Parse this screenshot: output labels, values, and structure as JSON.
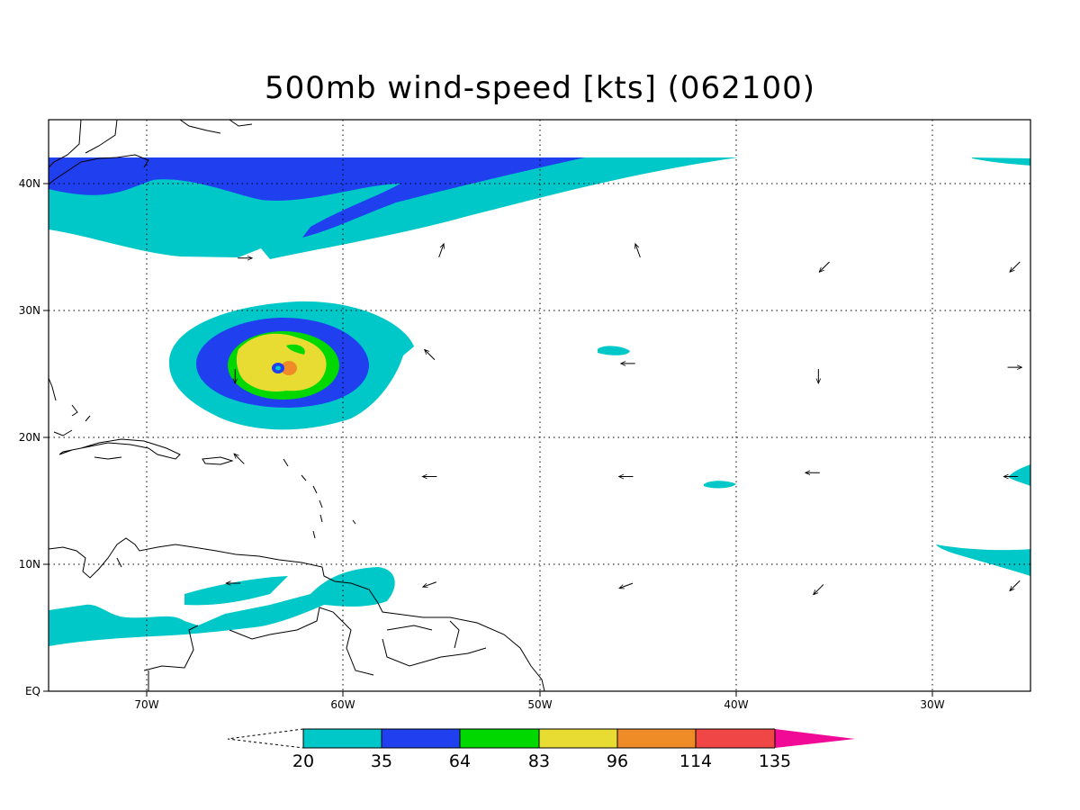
{
  "title": "500mb wind-speed [kts] (062100)",
  "axes": {
    "lon_labels": [
      "70W",
      "60W",
      "50W",
      "40W",
      "30W"
    ],
    "lat_labels": [
      "EQ",
      "10N",
      "20N",
      "30N",
      "40N"
    ],
    "lon_range": [
      -75,
      -25
    ],
    "lat_range": [
      0,
      45
    ],
    "grid": "dotted"
  },
  "colorbar": {
    "labels": [
      "20",
      "35",
      "64",
      "83",
      "96",
      "114",
      "135"
    ],
    "colors": [
      "#00c8c8",
      "#2040f0",
      "#00d800",
      "#e8dc32",
      "#f08c28",
      "#f04646",
      "#f00a96"
    ],
    "low_end": "dashed-open-triangle",
    "high_end": "filled-triangle"
  },
  "wind_arrows": [
    {
      "lon": -65.0,
      "lat": 34.1,
      "dir": "E"
    },
    {
      "lon": -55.0,
      "lat": 34.7,
      "dir": "NNE"
    },
    {
      "lon": -45.0,
      "lat": 34.7,
      "dir": "NNW"
    },
    {
      "lon": -35.5,
      "lat": 33.4,
      "dir": "SW"
    },
    {
      "lon": -25.8,
      "lat": 33.4,
      "dir": "SW"
    },
    {
      "lon": -55.6,
      "lat": 26.5,
      "dir": "NW"
    },
    {
      "lon": -45.5,
      "lat": 25.8,
      "dir": "W"
    },
    {
      "lon": -35.8,
      "lat": 24.8,
      "dir": "S"
    },
    {
      "lon": -25.8,
      "lat": 25.5,
      "dir": "E"
    },
    {
      "lon": -65.5,
      "lat": 24.8,
      "dir": "S"
    },
    {
      "lon": -65.3,
      "lat": 18.3,
      "dir": "NW"
    },
    {
      "lon": -55.6,
      "lat": 16.9,
      "dir": "W"
    },
    {
      "lon": -45.6,
      "lat": 16.9,
      "dir": "W"
    },
    {
      "lon": -36.1,
      "lat": 17.2,
      "dir": "W"
    },
    {
      "lon": -26.0,
      "lat": 16.9,
      "dir": "W"
    },
    {
      "lon": -65.6,
      "lat": 8.5,
      "dir": "W"
    },
    {
      "lon": -55.6,
      "lat": 8.4,
      "dir": "WSW"
    },
    {
      "lon": -45.6,
      "lat": 8.3,
      "dir": "WSW"
    },
    {
      "lon": -35.8,
      "lat": 8.0,
      "dir": "SW"
    },
    {
      "lon": -25.8,
      "lat": 8.3,
      "dir": "SW"
    }
  ]
}
